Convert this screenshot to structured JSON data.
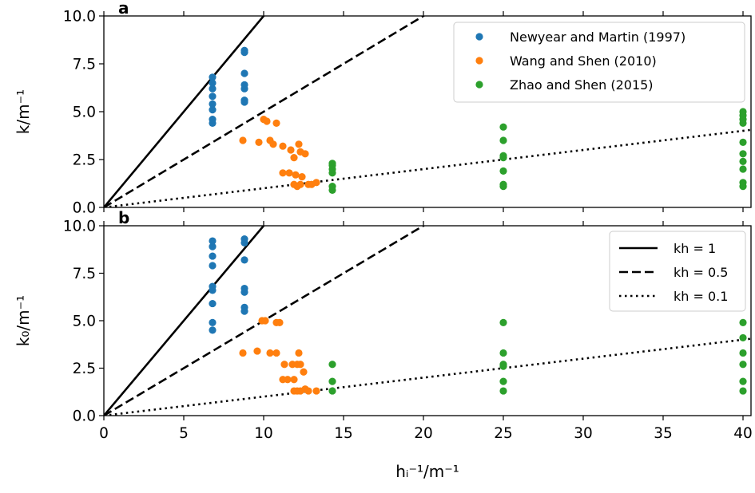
{
  "colors": {
    "Newyear and Martin (1997)": "#1f77b4",
    "Wang and Shen (2010)": "#ff7f0e",
    "Zhao and Shen (2015)": "#2ca02c",
    "line": "#000000"
  },
  "chart_data": [
    {
      "type": "scatter",
      "panel_label": "a",
      "ylabel": "k/m⁻¹",
      "xlim": [
        0,
        40.5
      ],
      "ylim": [
        0,
        10
      ],
      "xticks": [
        0,
        5,
        10,
        15,
        20,
        25,
        30,
        35,
        40
      ],
      "yticks": [
        "0.0",
        "2.5",
        "5.0",
        "7.5",
        "10.0"
      ],
      "legend_position": "top-right",
      "series": [
        {
          "name": "Newyear and Martin (1997)",
          "points": [
            [
              6.8,
              4.4
            ],
            [
              6.8,
              4.6
            ],
            [
              6.8,
              5.1
            ],
            [
              6.8,
              5.4
            ],
            [
              6.8,
              5.8
            ],
            [
              6.8,
              6.2
            ],
            [
              6.8,
              6.5
            ],
            [
              6.8,
              6.8
            ],
            [
              8.8,
              5.5
            ],
            [
              8.8,
              5.6
            ],
            [
              8.8,
              6.2
            ],
            [
              8.8,
              6.4
            ],
            [
              8.8,
              7.0
            ],
            [
              8.8,
              8.1
            ],
            [
              8.8,
              8.2
            ]
          ]
        },
        {
          "name": "Wang and Shen (2010)",
          "points": [
            [
              8.7,
              3.5
            ],
            [
              9.7,
              3.4
            ],
            [
              10.0,
              4.6
            ],
            [
              10.2,
              4.5
            ],
            [
              10.4,
              3.5
            ],
            [
              10.6,
              3.3
            ],
            [
              10.8,
              4.4
            ],
            [
              11.2,
              3.2
            ],
            [
              11.2,
              1.8
            ],
            [
              11.6,
              1.8
            ],
            [
              11.7,
              3.0
            ],
            [
              11.9,
              2.6
            ],
            [
              12.0,
              1.7
            ],
            [
              12.2,
              3.3
            ],
            [
              12.3,
              2.9
            ],
            [
              12.4,
              1.6
            ],
            [
              12.6,
              2.8
            ],
            [
              11.9,
              1.2
            ],
            [
              12.1,
              1.1
            ],
            [
              12.3,
              1.2
            ],
            [
              12.8,
              1.2
            ],
            [
              13.0,
              1.2
            ],
            [
              13.3,
              1.3
            ]
          ]
        },
        {
          "name": "Zhao and Shen (2015)",
          "points": [
            [
              14.3,
              0.9
            ],
            [
              14.3,
              1.1
            ],
            [
              14.3,
              1.8
            ],
            [
              14.3,
              2.0
            ],
            [
              14.3,
              2.2
            ],
            [
              14.3,
              2.3
            ],
            [
              25,
              1.1
            ],
            [
              25,
              1.2
            ],
            [
              25,
              1.9
            ],
            [
              25,
              2.6
            ],
            [
              25,
              2.7
            ],
            [
              25,
              3.5
            ],
            [
              25,
              4.2
            ],
            [
              40,
              1.1
            ],
            [
              40,
              1.3
            ],
            [
              40,
              2.0
            ],
            [
              40,
              2.4
            ],
            [
              40,
              2.8
            ],
            [
              40,
              3.4
            ],
            [
              40,
              4.4
            ],
            [
              40,
              4.6
            ],
            [
              40,
              4.8
            ],
            [
              40,
              5.0
            ]
          ]
        }
      ],
      "reference_lines": [
        {
          "label": "kh = 1",
          "slope": 1,
          "style": "solid"
        },
        {
          "label": "kh = 0.5",
          "slope": 0.5,
          "style": "dashed"
        },
        {
          "label": "kh = 0.1",
          "slope": 0.1,
          "style": "dotted"
        }
      ]
    },
    {
      "type": "scatter",
      "panel_label": "b",
      "ylabel": "k₀/m⁻¹",
      "xlabel": "hᵢ⁻¹/m⁻¹",
      "xlim": [
        0,
        40.5
      ],
      "ylim": [
        0,
        10
      ],
      "xticks": [
        0,
        5,
        10,
        15,
        20,
        25,
        30,
        35,
        40
      ],
      "yticks": [
        "0.0",
        "2.5",
        "5.0",
        "7.5",
        "10.0"
      ],
      "legend_position": "top-right",
      "series": [
        {
          "name": "Newyear and Martin (1997)",
          "points": [
            [
              6.8,
              4.5
            ],
            [
              6.8,
              4.9
            ],
            [
              6.8,
              5.9
            ],
            [
              6.8,
              6.6
            ],
            [
              6.8,
              6.8
            ],
            [
              6.8,
              7.9
            ],
            [
              6.8,
              8.4
            ],
            [
              6.8,
              8.9
            ],
            [
              6.8,
              9.2
            ],
            [
              8.8,
              5.5
            ],
            [
              8.8,
              5.7
            ],
            [
              8.8,
              6.5
            ],
            [
              8.8,
              6.7
            ],
            [
              8.8,
              8.2
            ],
            [
              8.8,
              9.1
            ],
            [
              8.8,
              9.3
            ]
          ]
        },
        {
          "name": "Wang and Shen (2010)",
          "points": [
            [
              8.7,
              3.3
            ],
            [
              9.6,
              3.4
            ],
            [
              9.9,
              5.0
            ],
            [
              10.1,
              5.0
            ],
            [
              10.4,
              3.3
            ],
            [
              10.8,
              4.9
            ],
            [
              11.0,
              4.9
            ],
            [
              10.8,
              3.3
            ],
            [
              11.3,
              2.7
            ],
            [
              11.2,
              1.9
            ],
            [
              11.5,
              1.9
            ],
            [
              11.8,
              2.7
            ],
            [
              11.9,
              1.9
            ],
            [
              12.1,
              2.7
            ],
            [
              12.2,
              3.3
            ],
            [
              12.3,
              2.7
            ],
            [
              12.5,
              2.3
            ],
            [
              11.9,
              1.3
            ],
            [
              12.1,
              1.3
            ],
            [
              12.3,
              1.3
            ],
            [
              12.6,
              1.4
            ],
            [
              12.8,
              1.3
            ],
            [
              13.3,
              1.3
            ]
          ]
        },
        {
          "name": "Zhao and Shen (2015)",
          "points": [
            [
              14.3,
              1.3
            ],
            [
              14.3,
              1.8
            ],
            [
              14.3,
              2.7
            ],
            [
              25,
              1.3
            ],
            [
              25,
              1.8
            ],
            [
              25,
              2.6
            ],
            [
              25,
              2.7
            ],
            [
              25,
              3.3
            ],
            [
              25,
              4.9
            ],
            [
              40,
              1.3
            ],
            [
              40,
              1.8
            ],
            [
              40,
              2.7
            ],
            [
              40,
              3.3
            ],
            [
              40,
              4.1
            ],
            [
              40,
              4.9
            ]
          ]
        }
      ],
      "reference_lines": [
        {
          "label": "kh = 1",
          "slope": 1,
          "style": "solid"
        },
        {
          "label": "kh = 0.5",
          "slope": 0.5,
          "style": "dashed"
        },
        {
          "label": "kh = 0.1",
          "slope": 0.1,
          "style": "dotted"
        }
      ]
    }
  ]
}
